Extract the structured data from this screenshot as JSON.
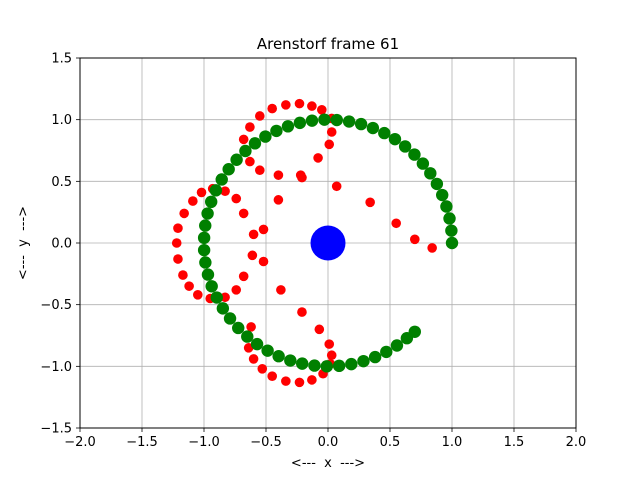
{
  "chart_data": {
    "type": "scatter",
    "title": "Arenstorf frame 61",
    "xlabel": "<---  x  --->",
    "ylabel": "<---  y  --->",
    "xlim": [
      -2.0,
      2.0
    ],
    "ylim": [
      -1.5,
      1.5
    ],
    "grid": true,
    "x_ticks": [
      "−2.0",
      "−1.5",
      "−1.0",
      "−0.5",
      "0.0",
      "0.5",
      "1.0",
      "1.5",
      "2.0"
    ],
    "y_ticks": [
      "−1.5",
      "−1.0",
      "−0.5",
      "0.0",
      "0.5",
      "1.0",
      "1.5"
    ],
    "x_tick_values": [
      -2.0,
      -1.5,
      -1.0,
      -0.5,
      0.0,
      0.5,
      1.0,
      1.5,
      2.0
    ],
    "y_tick_values": [
      -1.5,
      -1.0,
      -0.5,
      0.0,
      0.5,
      1.0,
      1.5
    ],
    "colors": {
      "trajectory": "#ff0000",
      "moon_orbit": "#008000",
      "earth": "#0000ff",
      "grid": "#b0b0b0"
    },
    "series": [
      {
        "color": "#ff0000",
        "marker_size": "small",
        "points": [
          [
            1.0,
            0.0
          ],
          [
            0.84,
            -0.04
          ],
          [
            0.7,
            0.03
          ],
          [
            0.55,
            0.16
          ],
          [
            0.34,
            0.33
          ],
          [
            0.07,
            0.46
          ],
          [
            -0.21,
            0.53
          ],
          [
            -0.4,
            0.35
          ],
          [
            -0.52,
            0.11
          ],
          [
            -0.52,
            -0.15
          ],
          [
            -0.38,
            -0.38
          ],
          [
            -0.21,
            -0.56
          ],
          [
            -0.07,
            -0.7
          ],
          [
            0.01,
            -0.82
          ],
          [
            0.03,
            -0.91
          ],
          [
            0.02,
            -0.98
          ],
          [
            -0.04,
            -1.06
          ],
          [
            -0.13,
            -1.11
          ],
          [
            -0.23,
            -1.13
          ],
          [
            -0.34,
            -1.12
          ],
          [
            -0.45,
            -1.08
          ],
          [
            -0.53,
            -1.02
          ],
          [
            -0.6,
            -0.94
          ],
          [
            -0.64,
            -0.85
          ],
          [
            -0.66,
            -0.76
          ],
          [
            -0.62,
            -0.68
          ],
          [
            -0.68,
            -0.27
          ],
          [
            -0.74,
            -0.38
          ],
          [
            -0.83,
            -0.44
          ],
          [
            -0.95,
            -0.45
          ],
          [
            -1.05,
            -0.42
          ],
          [
            -1.12,
            -0.35
          ],
          [
            -1.17,
            -0.26
          ],
          [
            -1.21,
            -0.13
          ],
          [
            -1.22,
            0.0
          ],
          [
            -1.21,
            0.12
          ],
          [
            -1.16,
            0.24
          ],
          [
            -1.09,
            0.34
          ],
          [
            -1.02,
            0.41
          ],
          [
            -0.93,
            0.44
          ],
          [
            -0.83,
            0.42
          ],
          [
            -0.74,
            0.36
          ],
          [
            -0.68,
            0.24
          ],
          [
            -0.6,
            0.07
          ],
          [
            -0.61,
            -0.1
          ],
          [
            -0.55,
            0.59
          ],
          [
            -0.63,
            0.66
          ],
          [
            -0.67,
            0.74
          ],
          [
            -0.68,
            0.84
          ],
          [
            -0.63,
            0.94
          ],
          [
            -0.55,
            1.03
          ],
          [
            -0.45,
            1.09
          ],
          [
            -0.34,
            1.12
          ],
          [
            -0.23,
            1.13
          ],
          [
            -0.13,
            1.11
          ],
          [
            -0.05,
            1.08
          ],
          [
            0.03,
            1.01
          ],
          [
            0.03,
            0.9
          ],
          [
            0.01,
            0.8
          ],
          [
            -0.08,
            0.69
          ],
          [
            -0.22,
            0.55
          ],
          [
            -0.4,
            0.55
          ]
        ]
      },
      {
        "color": "#008000",
        "marker_size": "medium",
        "points": [
          [
            1.0,
            0.0
          ],
          [
            0.995,
            0.1
          ],
          [
            0.98,
            0.199
          ],
          [
            0.955,
            0.296
          ],
          [
            0.921,
            0.389
          ],
          [
            0.878,
            0.479
          ],
          [
            0.825,
            0.565
          ],
          [
            0.765,
            0.644
          ],
          [
            0.697,
            0.717
          ],
          [
            0.622,
            0.783
          ],
          [
            0.54,
            0.842
          ],
          [
            0.454,
            0.891
          ],
          [
            0.362,
            0.932
          ],
          [
            0.267,
            0.964
          ],
          [
            0.17,
            0.985
          ],
          [
            0.071,
            0.997
          ],
          [
            -0.029,
            1.0
          ],
          [
            -0.129,
            0.992
          ],
          [
            -0.227,
            0.974
          ],
          [
            -0.323,
            0.946
          ],
          [
            -0.416,
            0.909
          ],
          [
            -0.505,
            0.863
          ],
          [
            -0.589,
            0.808
          ],
          [
            -0.666,
            0.746
          ],
          [
            -0.737,
            0.675
          ],
          [
            -0.801,
            0.598
          ],
          [
            -0.857,
            0.515
          ],
          [
            -0.904,
            0.427
          ],
          [
            -0.942,
            0.334
          ],
          [
            -0.971,
            0.239
          ],
          [
            -0.99,
            0.141
          ],
          [
            -0.999,
            0.042
          ],
          [
            -0.999,
            -0.058
          ],
          [
            -0.989,
            -0.158
          ],
          [
            -0.968,
            -0.256
          ],
          [
            -0.938,
            -0.351
          ],
          [
            -0.897,
            -0.442
          ],
          [
            -0.848,
            -0.53
          ],
          [
            -0.79,
            -0.612
          ],
          [
            -0.724,
            -0.689
          ],
          [
            -0.651,
            -0.759
          ],
          [
            -0.572,
            -0.82
          ],
          [
            -0.487,
            -0.873
          ],
          [
            -0.398,
            -0.918
          ],
          [
            -0.304,
            -0.953
          ],
          [
            -0.208,
            -0.978
          ],
          [
            -0.109,
            -0.994
          ],
          [
            -0.01,
            -1.0
          ],
          [
            0.09,
            -0.996
          ],
          [
            0.188,
            -0.982
          ],
          [
            0.286,
            -0.958
          ],
          [
            0.38,
            -0.925
          ],
          [
            0.47,
            -0.883
          ],
          [
            0.556,
            -0.831
          ],
          [
            0.636,
            -0.772
          ],
          [
            0.7,
            -0.72
          ]
        ]
      },
      {
        "color": "#0000ff",
        "marker_size": "large",
        "points": [
          [
            0.0,
            0.0
          ]
        ]
      }
    ]
  }
}
